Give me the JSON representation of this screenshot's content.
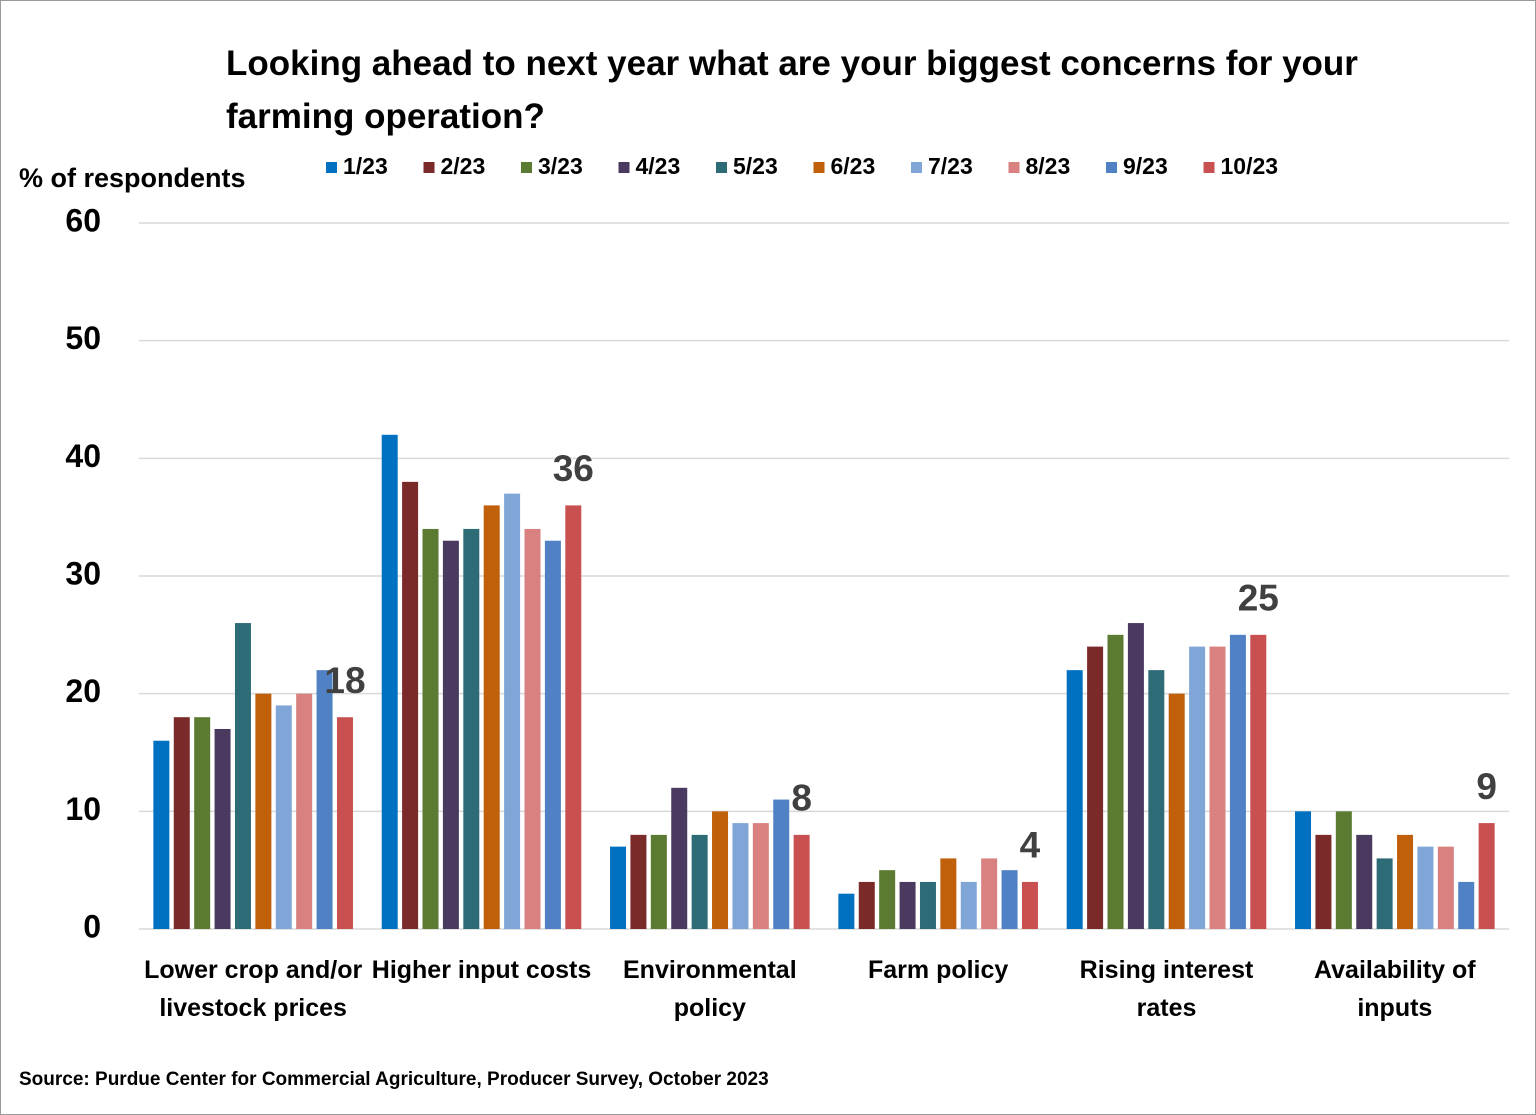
{
  "chart_data": {
    "type": "bar",
    "title": "Looking ahead to next year what are your biggest concerns for your farming operation?",
    "y_label": "% of respondents",
    "source": "Source: Purdue Center for Commercial Agriculture, Producer Survey, October 2023",
    "categories": [
      "Lower crop and/or livestock prices",
      "Higher input costs",
      "Environmental policy",
      "Farm policy",
      "Rising interest rates",
      "Availability of inputs"
    ],
    "series": [
      {
        "name": "1/23",
        "color": "#0070c0",
        "values": [
          16,
          42,
          7,
          3,
          22,
          10
        ]
      },
      {
        "name": "2/23",
        "color": "#7b2a2a",
        "values": [
          18,
          38,
          8,
          4,
          24,
          8
        ]
      },
      {
        "name": "3/23",
        "color": "#5b7a32",
        "values": [
          18,
          34,
          8,
          5,
          25,
          10
        ]
      },
      {
        "name": "4/23",
        "color": "#4b3a60",
        "values": [
          17,
          33,
          12,
          4,
          26,
          8
        ]
      },
      {
        "name": "5/23",
        "color": "#2d6b76",
        "values": [
          26,
          34,
          8,
          4,
          22,
          6
        ]
      },
      {
        "name": "6/23",
        "color": "#c0600a",
        "values": [
          20,
          36,
          10,
          6,
          20,
          8
        ]
      },
      {
        "name": "7/23",
        "color": "#7fa6d6",
        "values": [
          19,
          37,
          9,
          4,
          24,
          7
        ]
      },
      {
        "name": "8/23",
        "color": "#d98080",
        "values": [
          20,
          34,
          9,
          6,
          24,
          7
        ]
      },
      {
        "name": "9/23",
        "color": "#4f81c4",
        "values": [
          22,
          33,
          11,
          5,
          25,
          4
        ]
      },
      {
        "name": "10/23",
        "color": "#c85050",
        "values": [
          18,
          36,
          8,
          4,
          25,
          9
        ],
        "show_labels": true
      }
    ],
    "ylim": [
      0,
      60
    ],
    "yticks": [
      0,
      10,
      20,
      30,
      40,
      50,
      60
    ],
    "grid": true
  }
}
